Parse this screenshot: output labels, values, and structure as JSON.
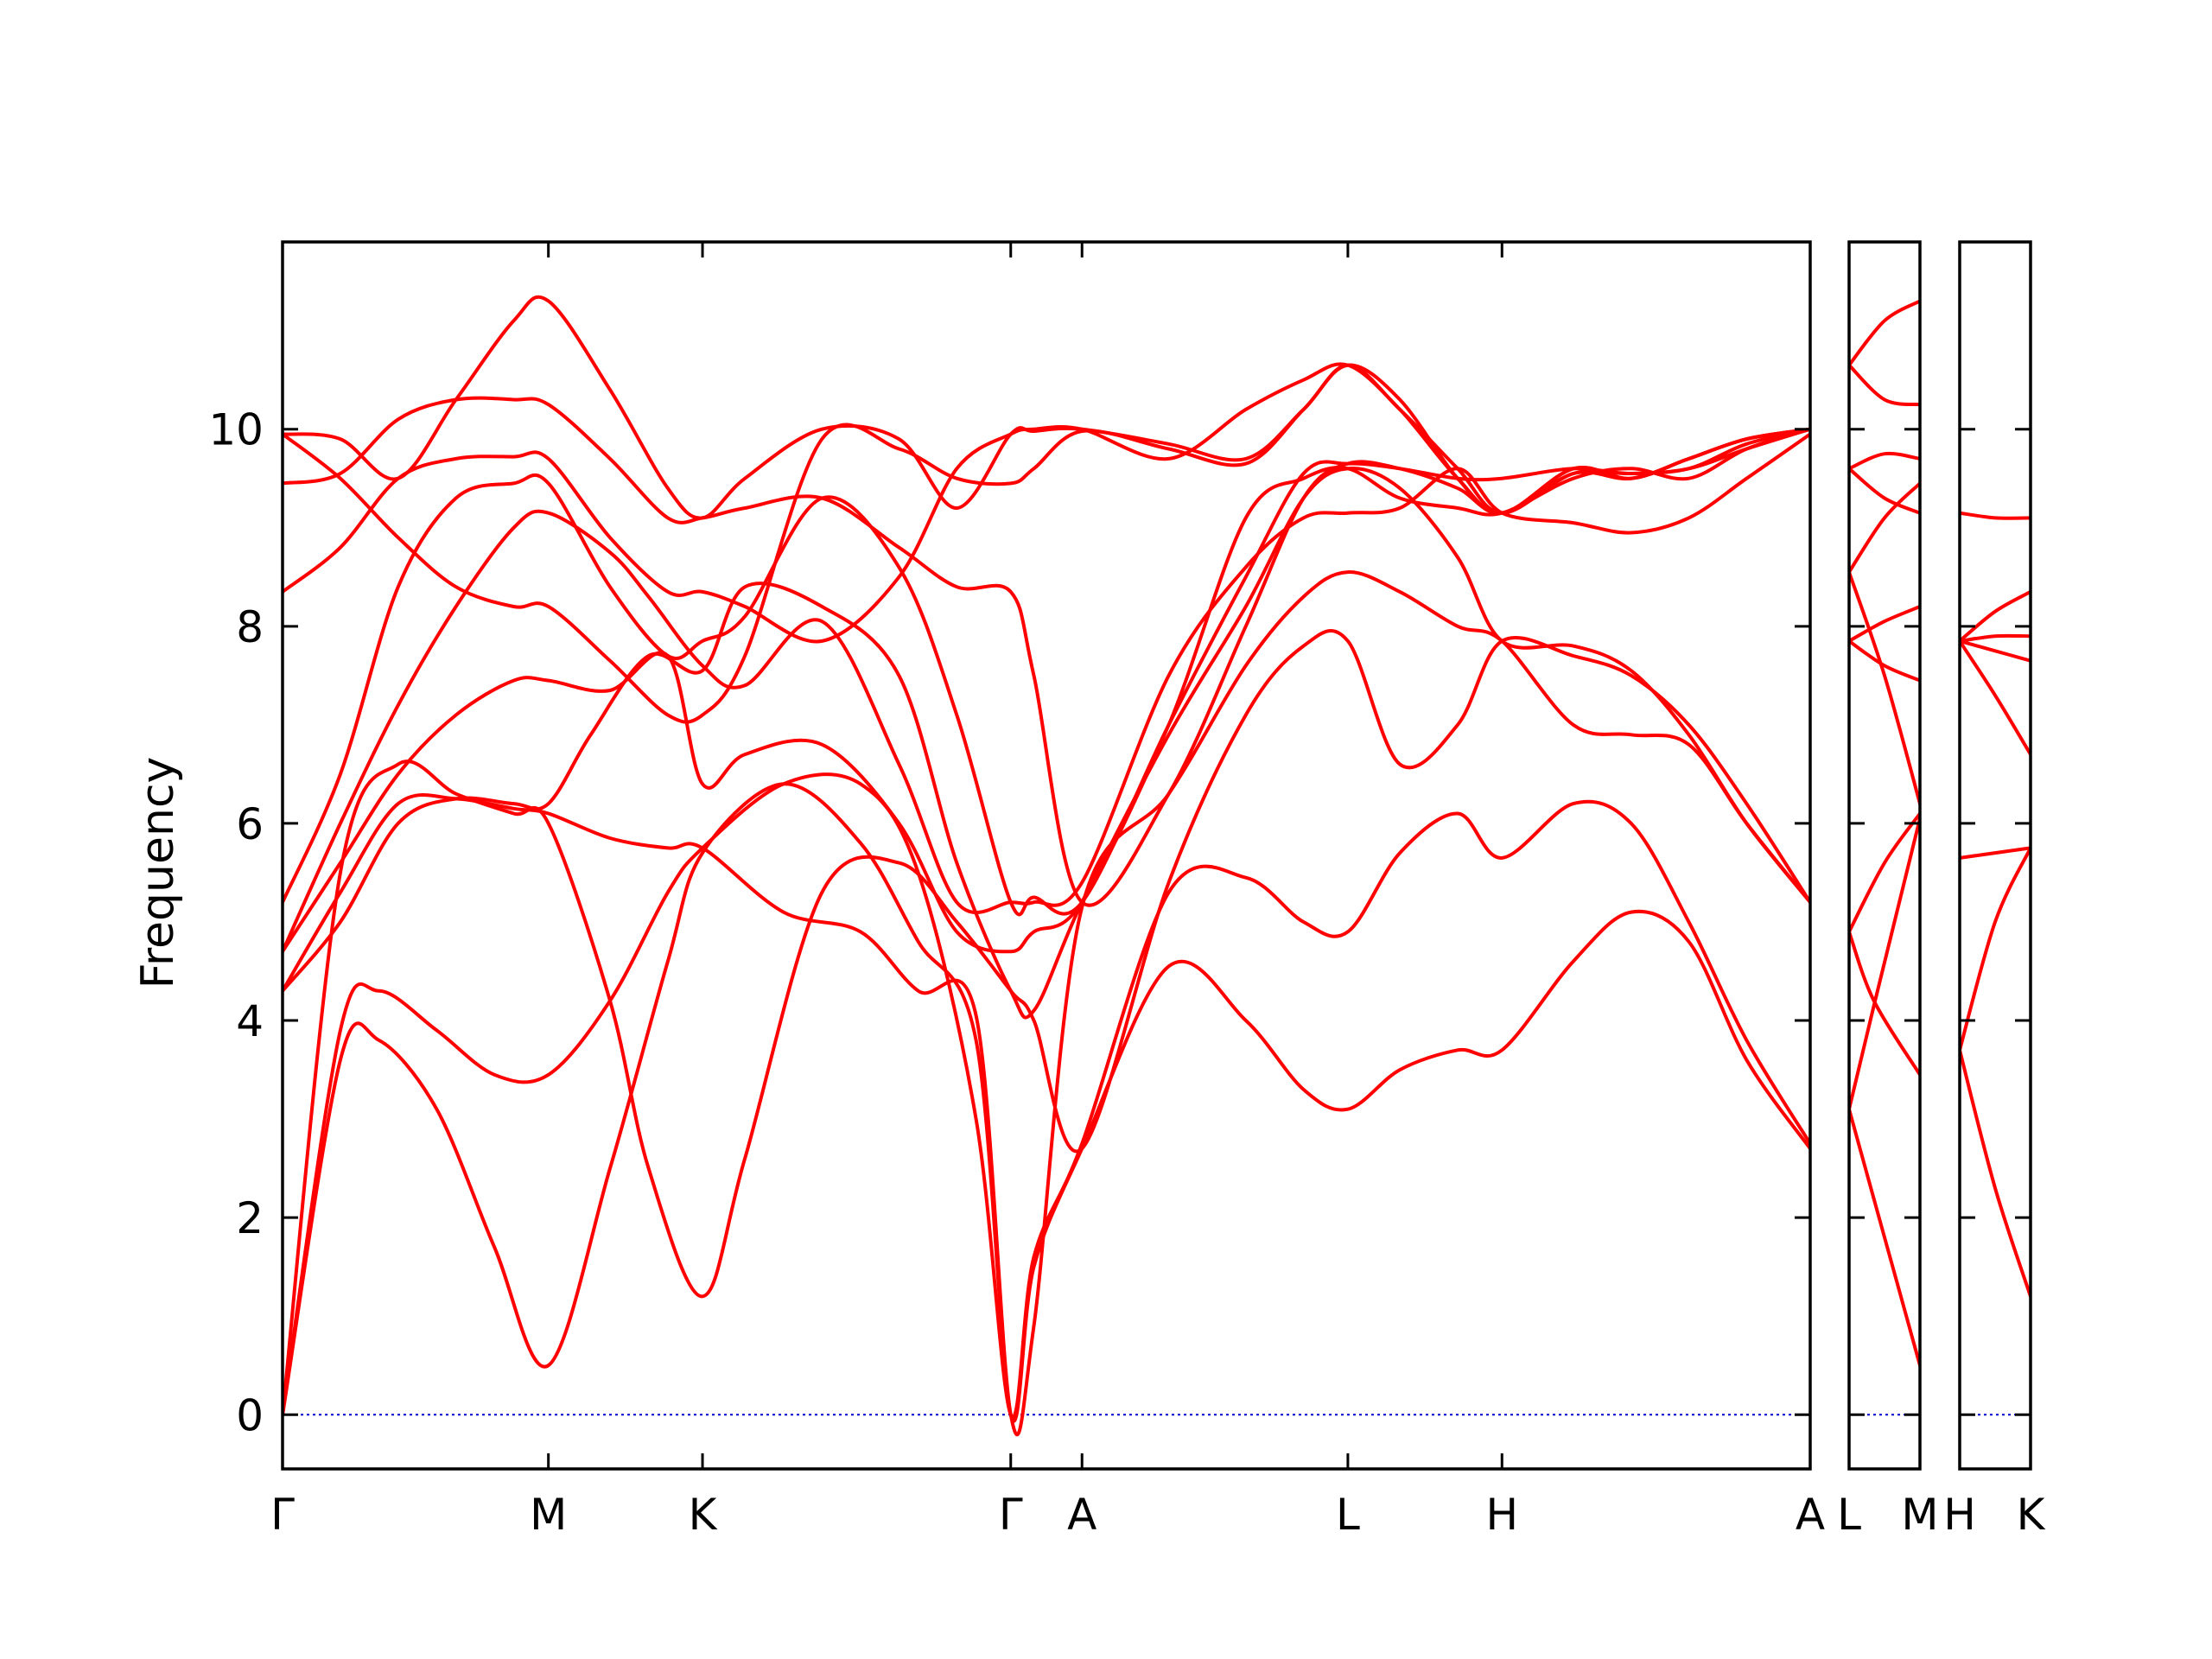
{
  "chart_data": {
    "type": "line",
    "ylabel": "Frequency",
    "ylim": [
      -0.55,
      11.9
    ],
    "yticks": [
      0,
      2,
      4,
      6,
      8,
      10
    ],
    "grid": false,
    "line_color": "#ff0000",
    "zero_line_color": "#0000cc",
    "panels": [
      {
        "id": "main",
        "x_range": [
          0,
          7.93
        ],
        "ticks": [
          {
            "x": 0.0,
            "label": "Γ"
          },
          {
            "x": 1.38,
            "label": "M"
          },
          {
            "x": 2.18,
            "label": "K"
          },
          {
            "x": 3.78,
            "label": "Γ"
          },
          {
            "x": 4.15,
            "label": "A"
          },
          {
            "x": 5.53,
            "label": "L"
          },
          {
            "x": 6.33,
            "label": "H"
          },
          {
            "x": 7.93,
            "label": "A"
          }
        ],
        "series": [
          {
            "x": [
              0,
              0.3,
              0.5,
              0.8,
              1.1,
              1.38,
              1.7,
              2.0,
              2.18,
              2.6,
              3.0,
              3.3,
              3.6,
              3.78,
              3.9,
              4.15,
              4.6,
              5.0,
              5.3,
              5.53,
              5.8,
              6.1,
              6.33,
              6.7,
              7.0,
              7.3,
              7.6,
              7.93
            ],
            "y": [
              0.0,
              3.6,
              3.8,
              3.1,
              1.7,
              0.5,
              2.5,
              4.6,
              5.7,
              6.4,
              5.8,
              4.8,
              3.8,
              0.0,
              1.5,
              2.7,
              4.55,
              4.0,
              3.3,
              3.1,
              3.5,
              3.7,
              3.7,
              4.6,
              5.1,
              4.8,
              3.6,
              2.7
            ]
          },
          {
            "x": [
              0,
              0.3,
              0.5,
              0.8,
              1.1,
              1.38,
              1.7,
              2.0,
              2.18,
              2.6,
              3.0,
              3.3,
              3.6,
              3.78,
              3.9,
              4.15,
              4.6,
              5.0,
              5.3,
              5.53,
              5.8,
              6.1,
              6.33,
              6.7,
              7.0,
              7.3,
              7.6,
              7.93
            ],
            "y": [
              0.0,
              3.9,
              4.3,
              3.9,
              3.45,
              3.45,
              4.2,
              5.3,
              5.75,
              6.4,
              6.4,
              5.5,
              3.0,
              0.0,
              1.6,
              2.75,
              5.3,
              5.45,
              5.0,
              4.9,
              5.7,
              6.1,
              5.65,
              6.2,
              6.0,
              5.0,
              3.8,
              2.75
            ]
          },
          {
            "x": [
              0,
              0.3,
              0.6,
              0.9,
              1.2,
              1.38,
              1.7,
              1.9,
              2.18,
              2.4,
              2.8,
              3.2,
              3.5,
              3.78,
              3.9,
              4.15,
              4.6,
              5.0,
              5.3,
              5.53,
              5.8,
              6.1,
              6.33,
              6.7,
              7.0,
              7.3,
              7.6,
              7.93
            ],
            "y": [
              0.0,
              5.5,
              6.6,
              6.3,
              6.1,
              6.0,
              4.2,
              2.5,
              1.2,
              2.6,
              5.3,
              5.6,
              5.0,
              4.3,
              4.0,
              2.7,
              5.4,
              7.1,
              7.8,
              7.85,
              6.6,
              7.0,
              7.85,
              7.7,
              7.5,
              7.0,
              6.2,
              5.2
            ]
          },
          {
            "x": [
              0,
              0.3,
              0.6,
              0.9,
              1.2,
              1.38,
              1.7,
              2.0,
              2.18,
              2.6,
              3.0,
              3.3,
              3.6,
              3.78,
              3.9,
              4.15,
              4.6,
              5.0,
              5.3,
              5.53,
              5.8,
              6.1,
              6.33,
              6.7,
              7.0,
              7.3,
              7.6,
              7.93
            ],
            "y": [
              4.3,
              5.3,
              6.2,
              6.25,
              6.15,
              6.1,
              5.85,
              5.75,
              5.75,
              5.1,
              4.9,
              4.3,
              4.05,
              0.0,
              0.9,
              5.15,
              6.3,
              7.6,
              8.3,
              8.55,
              8.35,
              8.0,
              7.85,
              7.0,
              6.9,
              6.8,
              6.0,
              5.2
            ]
          },
          {
            "x": [
              0,
              0.3,
              0.6,
              0.9,
              1.2,
              1.38,
              1.6,
              1.9,
              2.18,
              2.4,
              2.8,
              3.2,
              3.5,
              3.78,
              3.9,
              4.15,
              4.6,
              5.0,
              5.3,
              5.53,
              5.8,
              6.1,
              6.33,
              6.7,
              7.0,
              7.3,
              7.6,
              7.93
            ],
            "y": [
              4.3,
              5.0,
              6.0,
              6.25,
              6.2,
              6.2,
              6.9,
              7.7,
              7.55,
              8.4,
              8.2,
              7.5,
              5.6,
              4.3,
              4.1,
              5.2,
              6.9,
              8.2,
              9.3,
              9.6,
              9.4,
              8.7,
              7.85,
              7.8,
              7.55,
              6.9,
              6.0,
              5.2
            ]
          },
          {
            "x": [
              0,
              0.3,
              0.6,
              0.9,
              1.2,
              1.38,
              1.7,
              2.0,
              2.18,
              2.4,
              2.8,
              3.2,
              3.5,
              3.78,
              3.9,
              4.15,
              4.6,
              5.0,
              5.3,
              5.53,
              5.8,
              6.1,
              6.33,
              6.7,
              7.0,
              7.3,
              7.6,
              7.93
            ],
            "y": [
              4.7,
              5.6,
              6.5,
              7.1,
              7.45,
              7.45,
              7.35,
              7.7,
              6.4,
              6.7,
              6.8,
              6.0,
              4.9,
              4.7,
              4.9,
              5.2,
              7.0,
              9.1,
              9.5,
              9.6,
              9.3,
              9.2,
              9.15,
              9.5,
              9.6,
              9.5,
              9.8,
              10.0
            ]
          },
          {
            "x": [
              0,
              0.3,
              0.6,
              0.9,
              1.2,
              1.38,
              1.7,
              1.9,
              2.18,
              2.4,
              2.8,
              3.2,
              3.5,
              3.78,
              3.9,
              4.15,
              4.6,
              5.0,
              5.3,
              5.53,
              5.8,
              6.1,
              6.33,
              6.7,
              7.0,
              7.3,
              7.6,
              7.93
            ],
            "y": [
              4.7,
              6.0,
              7.2,
              8.2,
              9.0,
              9.15,
              8.75,
              8.3,
              7.6,
              7.4,
              8.05,
              6.6,
              5.2,
              5.2,
              5.2,
              5.4,
              7.5,
              8.6,
              9.1,
              9.15,
              9.2,
              9.6,
              9.15,
              9.05,
              8.95,
              9.1,
              9.5,
              9.95
            ]
          },
          {
            "x": [
              0,
              0.3,
              0.6,
              0.9,
              1.2,
              1.38,
              1.7,
              2.0,
              2.18,
              2.4,
              2.8,
              3.2,
              3.5,
              3.78,
              3.9,
              4.15,
              4.6,
              5.0,
              5.3,
              5.53,
              5.8,
              6.1,
              6.33,
              6.7,
              7.0,
              7.3,
              7.6,
              7.93
            ],
            "y": [
              5.2,
              6.5,
              8.4,
              9.3,
              9.45,
              9.45,
              8.4,
              7.7,
              7.85,
              8.1,
              9.3,
              8.6,
              7.1,
              5.2,
              5.25,
              5.2,
              7.0,
              8.5,
              9.55,
              9.65,
              9.6,
              9.5,
              9.5,
              9.6,
              9.55,
              9.6,
              9.8,
              10.0
            ]
          },
          {
            "x": [
              0,
              0.3,
              0.6,
              0.9,
              1.2,
              1.38,
              1.7,
              2.0,
              2.18,
              2.4,
              2.8,
              3.2,
              3.5,
              3.78,
              3.9,
              4.15,
              4.6,
              5.0,
              5.3,
              5.53,
              5.8,
              6.1,
              6.33,
              6.7,
              7.0,
              7.3,
              7.6,
              7.93
            ],
            "y": [
              8.35,
              8.8,
              9.5,
              9.7,
              9.72,
              9.7,
              8.9,
              8.35,
              8.35,
              8.2,
              7.85,
              8.5,
              9.6,
              9.95,
              10.0,
              10.0,
              9.7,
              10.2,
              10.5,
              10.65,
              10.2,
              9.5,
              9.15,
              9.6,
              9.5,
              9.7,
              9.9,
              10.0
            ]
          },
          {
            "x": [
              0,
              0.3,
              0.6,
              0.9,
              1.2,
              1.38,
              1.7,
              2.0,
              2.18,
              2.4,
              2.8,
              3.2,
              3.5,
              3.78,
              3.9,
              4.15,
              4.6,
              5.0,
              5.3,
              5.53,
              5.8,
              6.1,
              6.33,
              6.7,
              7.0,
              7.3,
              7.6,
              7.93
            ],
            "y": [
              9.45,
              9.55,
              10.1,
              10.3,
              10.3,
              10.25,
              9.7,
              9.1,
              9.1,
              9.2,
              9.3,
              8.8,
              8.4,
              8.35,
              7.5,
              5.2,
              6.3,
              8.0,
              9.3,
              9.65,
              9.6,
              9.4,
              9.15,
              9.55,
              9.5,
              9.7,
              9.9,
              10.0
            ]
          },
          {
            "x": [
              0,
              0.3,
              0.6,
              0.9,
              1.2,
              1.38,
              1.7,
              2.0,
              2.18,
              2.4,
              2.8,
              3.2,
              3.5,
              3.78,
              3.9,
              4.15,
              4.6,
              5.0,
              5.3,
              5.53,
              5.8,
              6.1,
              6.33,
              6.7,
              7.0,
              7.3,
              7.6,
              7.93
            ],
            "y": [
              9.95,
              9.5,
              8.9,
              8.4,
              8.2,
              8.2,
              7.65,
              7.1,
              7.1,
              7.7,
              9.9,
              9.8,
              9.5,
              9.45,
              9.6,
              9.98,
              9.8,
              9.65,
              10.2,
              10.65,
              10.3,
              9.5,
              9.15,
              9.6,
              9.5,
              9.7,
              9.9,
              10.0
            ]
          },
          {
            "x": [
              0,
              0.3,
              0.6,
              0.9,
              1.2,
              1.38,
              1.7,
              2.0,
              2.18,
              2.4,
              2.8,
              3.2,
              3.5,
              3.78,
              3.9,
              4.15,
              4.6,
              5.0,
              5.3,
              5.53,
              5.8,
              6.1,
              6.33,
              6.7,
              7.0,
              7.3,
              7.6,
              7.93
            ],
            "y": [
              9.95,
              9.9,
              9.5,
              10.3,
              11.1,
              11.3,
              10.4,
              9.4,
              9.1,
              9.5,
              10.0,
              9.9,
              9.2,
              9.95,
              9.98,
              10.0,
              9.85,
              9.7,
              10.2,
              10.65,
              10.2,
              9.6,
              9.15,
              9.55,
              9.55,
              9.6,
              9.85,
              10.0
            ]
          }
        ]
      },
      {
        "id": "L-M",
        "x_range": [
          0,
          1.0
        ],
        "ticks": [
          {
            "x": 0.0,
            "label": "L"
          },
          {
            "x": 1.0,
            "label": "M"
          }
        ],
        "series": [
          {
            "x": [
              0,
              0.5,
              1.0
            ],
            "y": [
              3.1,
              1.8,
              0.5
            ]
          },
          {
            "x": [
              0,
              0.35,
              1.0
            ],
            "y": [
              3.1,
              4.15,
              6.05
            ]
          },
          {
            "x": [
              0,
              0.35,
              1.0
            ],
            "y": [
              4.9,
              4.2,
              3.45
            ]
          },
          {
            "x": [
              0,
              0.5,
              1.0
            ],
            "y": [
              4.9,
              5.6,
              6.1
            ]
          },
          {
            "x": [
              0,
              0.5,
              1.0
            ],
            "y": [
              7.85,
              7.6,
              7.45
            ]
          },
          {
            "x": [
              0,
              0.5,
              1.0
            ],
            "y": [
              7.85,
              8.05,
              8.2
            ]
          },
          {
            "x": [
              0,
              0.5,
              1.0
            ],
            "y": [
              8.55,
              7.5,
              6.2
            ]
          },
          {
            "x": [
              0,
              0.5,
              1.0
            ],
            "y": [
              8.55,
              9.1,
              9.45
            ]
          },
          {
            "x": [
              0,
              0.5,
              1.0
            ],
            "y": [
              9.6,
              9.75,
              9.7
            ]
          },
          {
            "x": [
              0,
              0.5,
              1.0
            ],
            "y": [
              9.6,
              9.3,
              9.15
            ]
          },
          {
            "x": [
              0,
              0.5,
              1.0
            ],
            "y": [
              10.65,
              10.3,
              10.25
            ]
          },
          {
            "x": [
              0,
              0.5,
              1.0
            ],
            "y": [
              10.65,
              11.1,
              11.3
            ]
          }
        ]
      },
      {
        "id": "H-K",
        "x_range": [
          0,
          1.0
        ],
        "ticks": [
          {
            "x": 0.0,
            "label": "H"
          },
          {
            "x": 1.0,
            "label": "K"
          }
        ],
        "series": [
          {
            "x": [
              0,
              0.5,
              1.0
            ],
            "y": [
              3.7,
              2.3,
              1.2
            ]
          },
          {
            "x": [
              0,
              0.5,
              1.0
            ],
            "y": [
              3.7,
              5.0,
              5.75
            ]
          },
          {
            "x": [
              0,
              0.5,
              1.0
            ],
            "y": [
              5.65,
              5.7,
              5.75
            ]
          },
          {
            "x": [
              0,
              0.5,
              1.0
            ],
            "y": [
              7.85,
              7.3,
              6.7
            ]
          },
          {
            "x": [
              0,
              0.5,
              1.0
            ],
            "y": [
              7.85,
              7.75,
              7.65
            ]
          },
          {
            "x": [
              0,
              0.5,
              1.0
            ],
            "y": [
              7.85,
              7.9,
              7.9
            ]
          },
          {
            "x": [
              0,
              0.5,
              1.0
            ],
            "y": [
              7.85,
              8.15,
              8.35
            ]
          },
          {
            "x": [
              0,
              0.5,
              1.0
            ],
            "y": [
              9.15,
              9.1,
              9.1
            ]
          }
        ]
      }
    ]
  }
}
